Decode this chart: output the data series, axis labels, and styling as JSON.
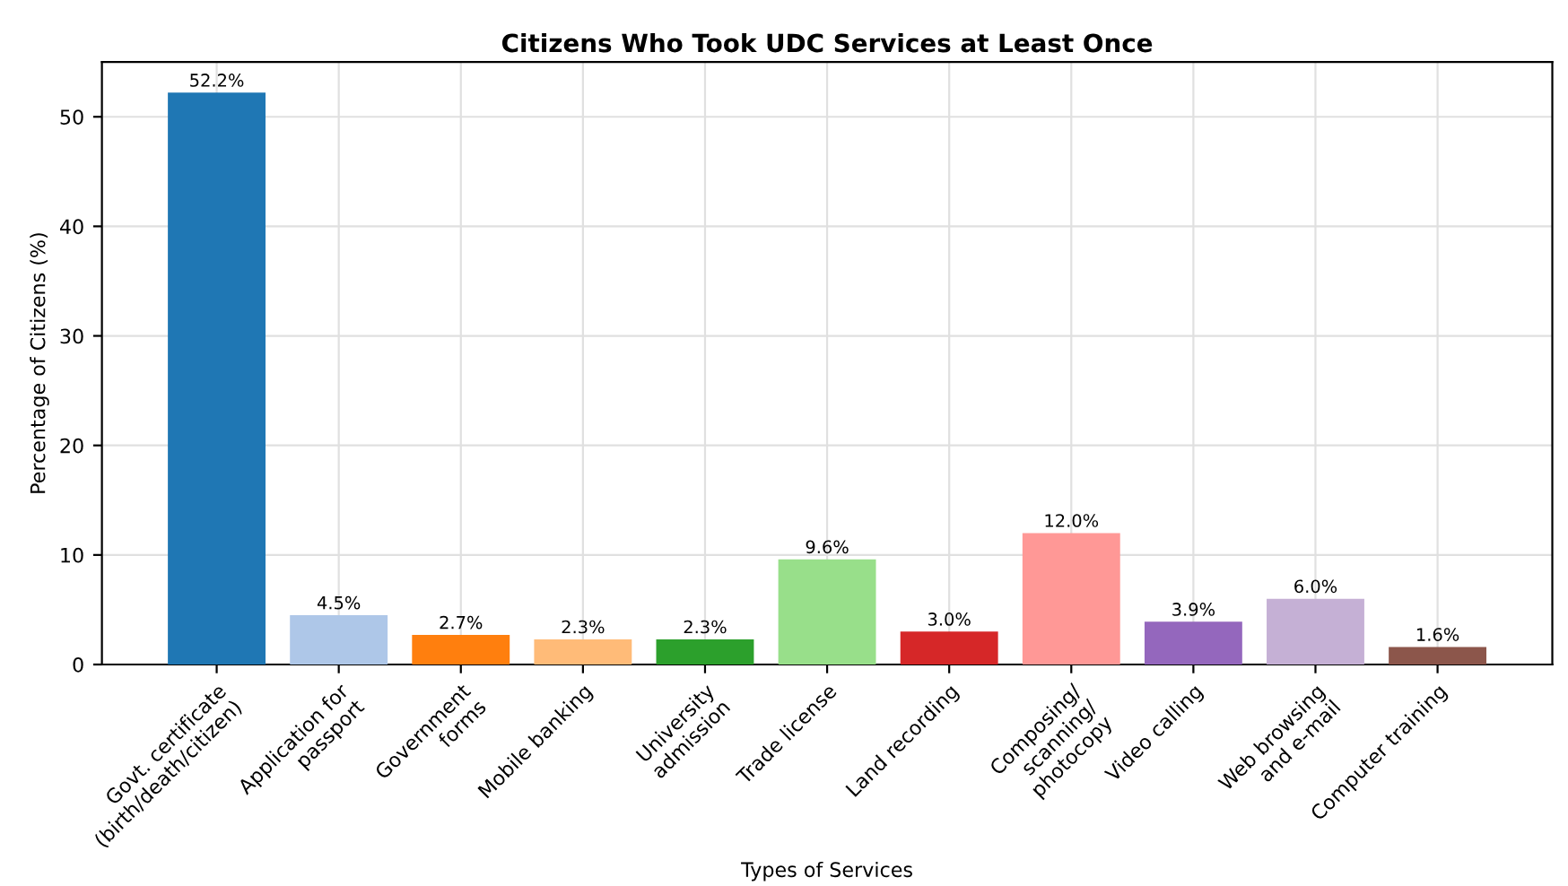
{
  "chart_data": {
    "type": "bar",
    "title": "Citizens Who Took UDC Services at Least Once",
    "xlabel": "Types of Services",
    "ylabel": "Percentage of Citizens (%)",
    "categories": [
      "Govt. certificate\n(birth/death/citizen)",
      "Application for\npassport",
      "Government\nforms",
      "Mobile banking",
      "University\nadmission",
      "Trade license",
      "Land recording",
      "Composing/\nscanning/\nphotocopy",
      "Video calling",
      "Web browsing\nand e-mail",
      "Computer training"
    ],
    "values": [
      52.2,
      4.5,
      2.7,
      2.3,
      2.3,
      9.6,
      3.0,
      12.0,
      3.9,
      6.0,
      1.6
    ],
    "colors": [
      "#1f77b4",
      "#aec7e8",
      "#ff7f0e",
      "#ffbb78",
      "#2ca02c",
      "#98df8a",
      "#d62728",
      "#ff9896",
      "#9467bd",
      "#c5b0d5",
      "#8c564b"
    ],
    "value_labels": [
      "52.2%",
      "4.5%",
      "2.7%",
      "2.3%",
      "2.3%",
      "9.6%",
      "3.0%",
      "12.0%",
      "3.9%",
      "6.0%",
      "1.6%"
    ],
    "ylim": [
      0,
      55
    ],
    "yticks": [
      0,
      10,
      20,
      30,
      40,
      50
    ],
    "grid": true
  }
}
